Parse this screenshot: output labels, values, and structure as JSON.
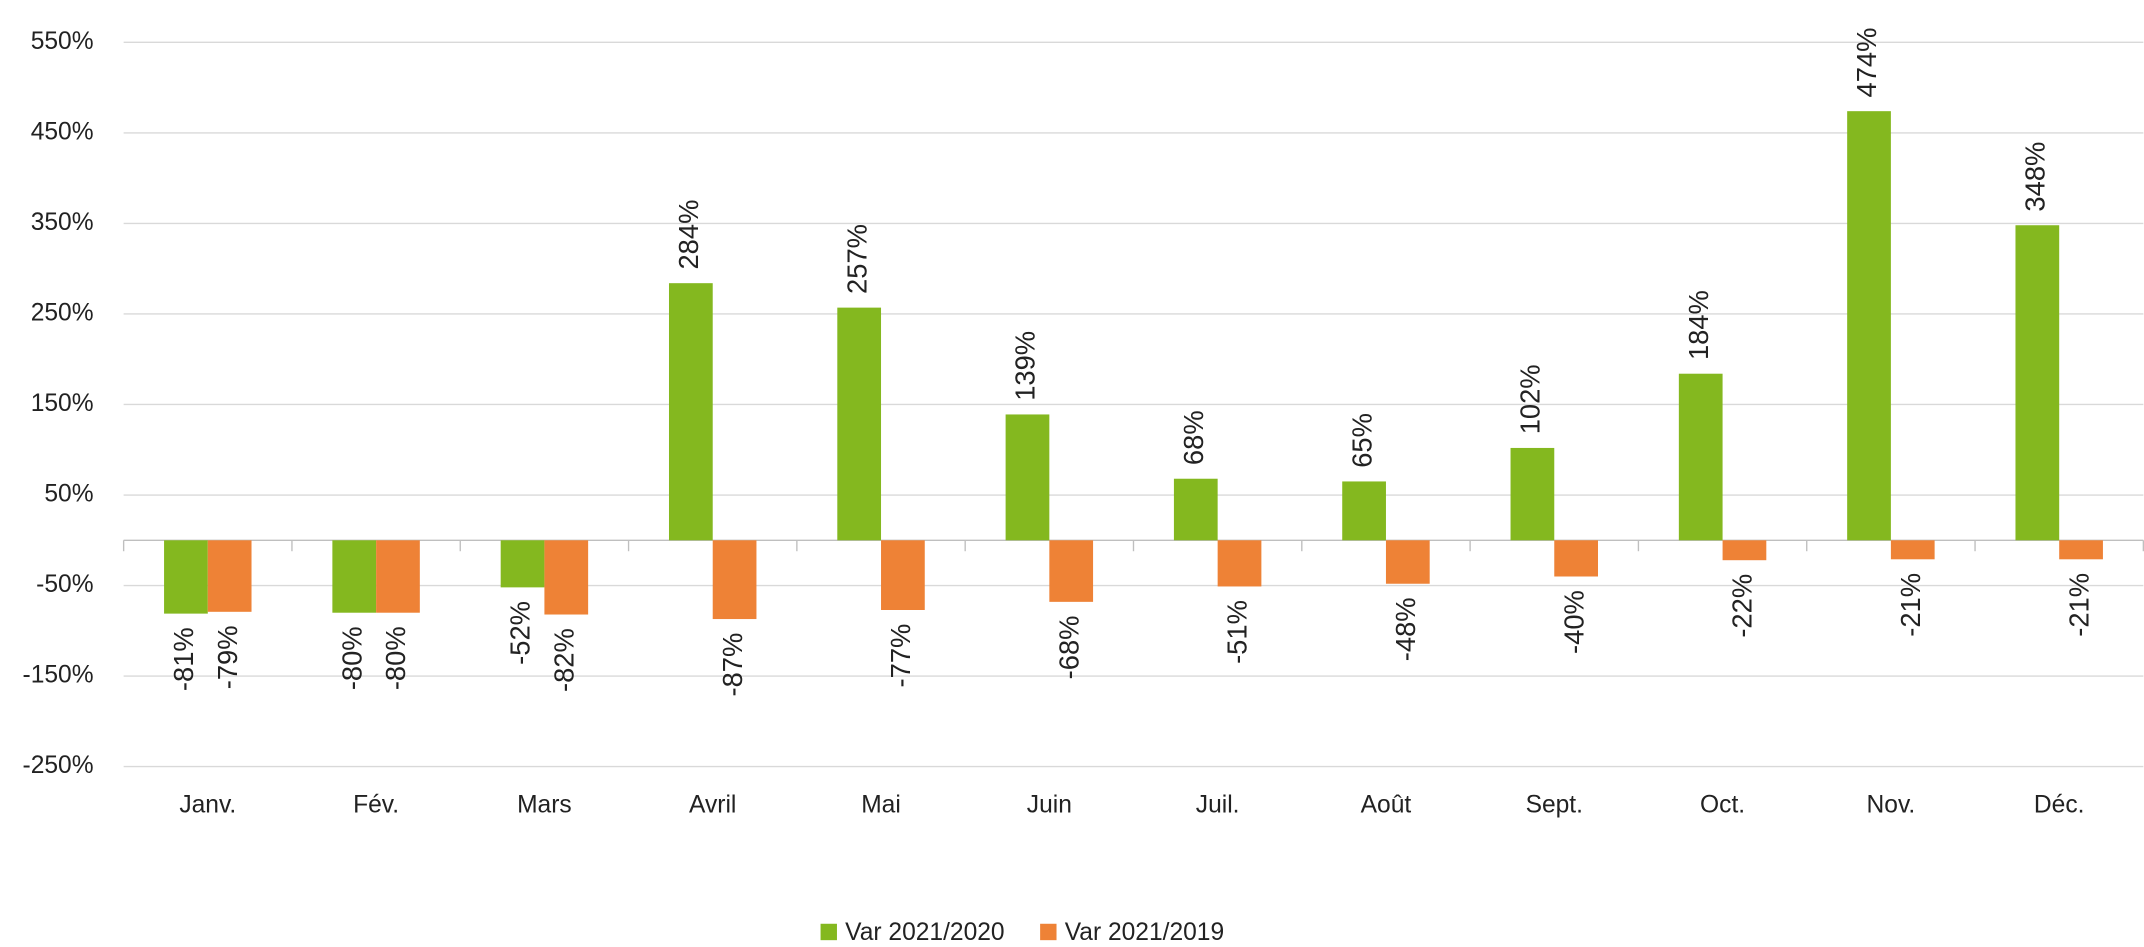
{
  "chart_data": {
    "type": "bar",
    "categories": [
      "Janv.",
      "Fév.",
      "Mars",
      "Avril",
      "Mai",
      "Juin",
      "Juil.",
      "Août",
      "Sept.",
      "Oct.",
      "Nov.",
      "Déc."
    ],
    "series": [
      {
        "name": "Var 2021/2020",
        "color": "#84b81f",
        "values": [
          -81,
          -80,
          -52,
          284,
          257,
          139,
          68,
          65,
          102,
          184,
          474,
          348
        ],
        "value_labels": [
          "-81%",
          "-80%",
          "-52%",
          "284%",
          "257%",
          "139%",
          "68%",
          "65%",
          "102%",
          "184%",
          "474%",
          "348%"
        ]
      },
      {
        "name": "Var 2021/2019",
        "color": "#ee8236",
        "values": [
          -79,
          -80,
          -82,
          -87,
          -77,
          -68,
          -51,
          -48,
          -40,
          -22,
          -21,
          -21
        ],
        "value_labels": [
          "-79%",
          "-80%",
          "-82%",
          "-87%",
          "-77%",
          "-68%",
          "-51%",
          "-48%",
          "-40%",
          "-22%",
          "-21%",
          "-21%"
        ]
      }
    ],
    "ylim": [
      -250,
      550
    ],
    "yticks": [
      {
        "value": -250,
        "label": "-250%"
      },
      {
        "value": -150,
        "label": "-150%"
      },
      {
        "value": -50,
        "label": "-50%"
      },
      {
        "value": 50,
        "label": "50%"
      },
      {
        "value": 150,
        "label": "150%"
      },
      {
        "value": 250,
        "label": "250%"
      },
      {
        "value": 350,
        "label": "350%"
      },
      {
        "value": 450,
        "label": "450%"
      },
      {
        "value": 550,
        "label": "550%"
      }
    ],
    "grid": true,
    "legend": "bottom"
  }
}
